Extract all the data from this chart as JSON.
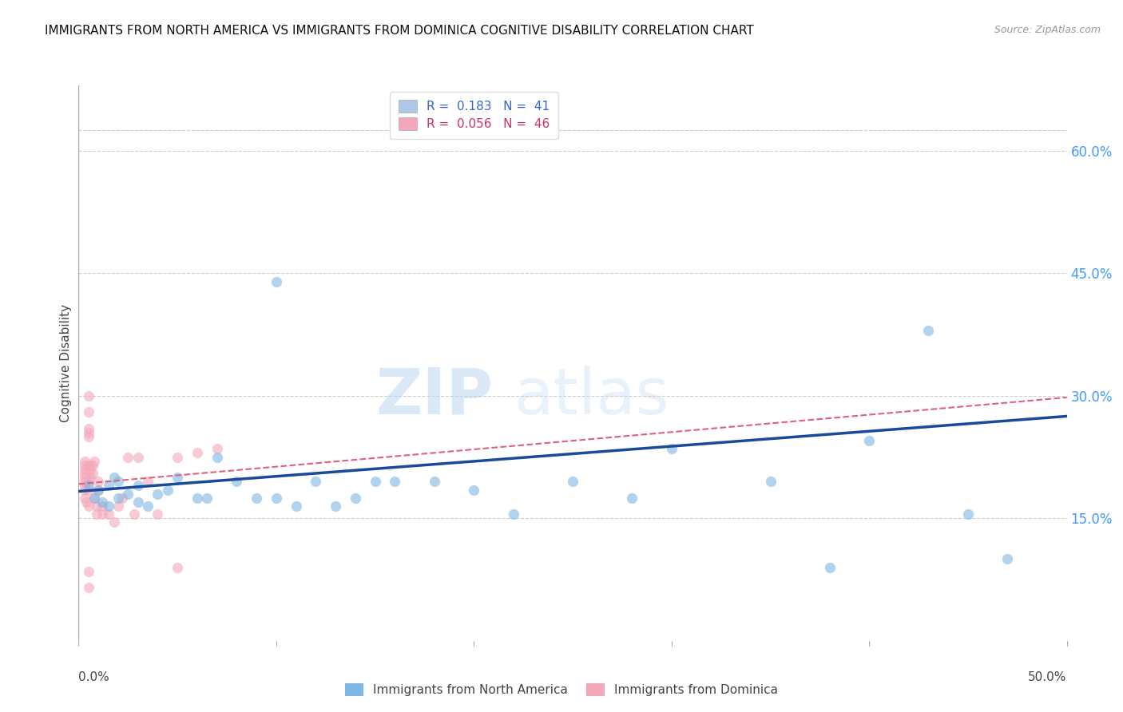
{
  "title": "IMMIGRANTS FROM NORTH AMERICA VS IMMIGRANTS FROM DOMINICA COGNITIVE DISABILITY CORRELATION CHART",
  "source": "Source: ZipAtlas.com",
  "ylabel": "Cognitive Disability",
  "right_yticks": [
    "60.0%",
    "45.0%",
    "30.0%",
    "15.0%"
  ],
  "right_ytick_vals": [
    0.6,
    0.45,
    0.3,
    0.15
  ],
  "xlim": [
    0.0,
    0.5
  ],
  "ylim": [
    0.0,
    0.68
  ],
  "legend1_label": "R =  0.183   N =  41",
  "legend2_label": "R =  0.056   N =  46",
  "legend1_color": "#aec6e8",
  "legend2_color": "#f4a7b9",
  "watermark_zip": "ZIP",
  "watermark_atlas": "atlas",
  "blue_scatter_x": [
    0.005,
    0.008,
    0.01,
    0.012,
    0.015,
    0.015,
    0.018,
    0.02,
    0.02,
    0.025,
    0.03,
    0.03,
    0.035,
    0.04,
    0.045,
    0.05,
    0.06,
    0.065,
    0.07,
    0.08,
    0.09,
    0.1,
    0.11,
    0.12,
    0.13,
    0.14,
    0.15,
    0.16,
    0.18,
    0.2,
    0.22,
    0.25,
    0.28,
    0.3,
    0.35,
    0.38,
    0.4,
    0.43,
    0.45,
    0.47,
    0.1
  ],
  "blue_scatter_y": [
    0.19,
    0.175,
    0.185,
    0.17,
    0.19,
    0.165,
    0.2,
    0.175,
    0.195,
    0.18,
    0.17,
    0.19,
    0.165,
    0.18,
    0.185,
    0.2,
    0.175,
    0.175,
    0.225,
    0.195,
    0.175,
    0.175,
    0.165,
    0.195,
    0.165,
    0.175,
    0.195,
    0.195,
    0.195,
    0.185,
    0.155,
    0.195,
    0.175,
    0.235,
    0.195,
    0.09,
    0.245,
    0.38,
    0.155,
    0.1,
    0.44
  ],
  "pink_scatter_x": [
    0.003,
    0.003,
    0.003,
    0.003,
    0.003,
    0.003,
    0.003,
    0.003,
    0.003,
    0.004,
    0.005,
    0.005,
    0.005,
    0.005,
    0.005,
    0.006,
    0.006,
    0.007,
    0.007,
    0.008,
    0.008,
    0.009,
    0.009,
    0.01,
    0.01,
    0.012,
    0.012,
    0.015,
    0.018,
    0.02,
    0.022,
    0.025,
    0.028,
    0.03,
    0.035,
    0.04,
    0.05,
    0.05,
    0.06,
    0.07,
    0.005,
    0.005,
    0.005,
    0.005,
    0.005,
    0.005
  ],
  "pink_scatter_y": [
    0.19,
    0.185,
    0.195,
    0.2,
    0.205,
    0.21,
    0.215,
    0.22,
    0.175,
    0.17,
    0.165,
    0.185,
    0.195,
    0.215,
    0.25,
    0.2,
    0.21,
    0.205,
    0.215,
    0.22,
    0.175,
    0.165,
    0.155,
    0.185,
    0.195,
    0.165,
    0.155,
    0.155,
    0.145,
    0.165,
    0.175,
    0.225,
    0.155,
    0.225,
    0.195,
    0.155,
    0.225,
    0.09,
    0.23,
    0.235,
    0.255,
    0.26,
    0.28,
    0.3,
    0.085,
    0.065
  ],
  "blue_line_x": [
    0.0,
    0.5
  ],
  "blue_line_y_start": 0.183,
  "blue_line_y_end": 0.275,
  "pink_line_x": [
    0.0,
    0.5
  ],
  "pink_line_y_start": 0.192,
  "pink_line_y_end": 0.298,
  "grid_color": "#cccccc",
  "scatter_alpha": 0.6,
  "scatter_size": 90,
  "blue_color": "#7eb6e4",
  "pink_color": "#f4a7b9",
  "blue_line_color": "#1a4a9b",
  "pink_line_color": "#e06080",
  "bottom_legend_labels": [
    "Immigrants from North America",
    "Immigrants from Dominica"
  ]
}
